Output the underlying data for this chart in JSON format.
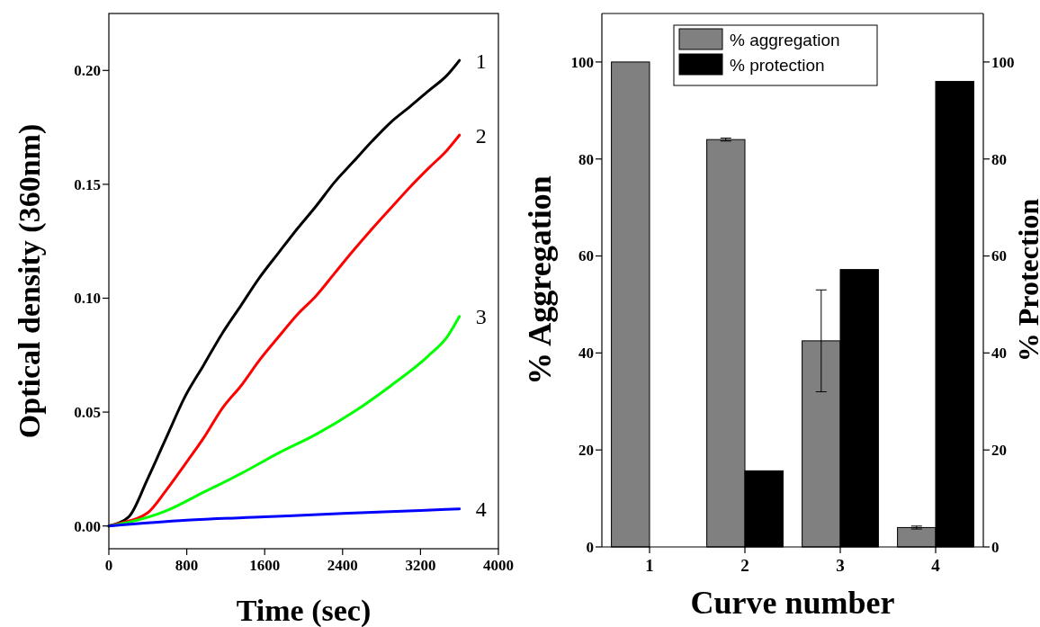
{
  "chart_data": [
    {
      "type": "line",
      "xlabel": "Time (sec)",
      "ylabel": "Optical density (360nm)",
      "xlim": [
        0,
        4000
      ],
      "xticks": [
        0,
        800,
        1600,
        2400,
        3200,
        4000
      ],
      "ylim": [
        -0.01,
        0.225
      ],
      "yticks": [
        {
          "value": 0,
          "label": "0.00"
        },
        0.05,
        {
          "value": 0.1,
          "label": "0.10"
        },
        0.15,
        {
          "value": 0.2,
          "label": "0.20"
        }
      ],
      "grid": false,
      "line_style": "solid",
      "marker": "none",
      "series": [
        {
          "name": "1",
          "color": "#000000",
          "x": [
            0,
            204,
            396,
            588,
            781,
            973,
            1165,
            1358,
            1550,
            1742,
            1935,
            2127,
            2319,
            2512,
            2704,
            2896,
            3088,
            3281,
            3473,
            3600
          ],
          "values": [
            0,
            0.004,
            0.0205,
            0.0386,
            0.0567,
            0.0706,
            0.0846,
            0.0969,
            0.1092,
            0.1199,
            0.1305,
            0.1404,
            0.151,
            0.16,
            0.169,
            0.1773,
            0.184,
            0.191,
            0.1979,
            0.2044
          ]
        },
        {
          "name": "2",
          "color": "#ff0000",
          "x": [
            0,
            100,
            396,
            588,
            781,
            973,
            1165,
            1358,
            1550,
            1742,
            1935,
            2127,
            2319,
            2512,
            2704,
            2896,
            3088,
            3281,
            3473,
            3600
          ],
          "values": [
            0,
            0.001,
            0.0057,
            0.0156,
            0.027,
            0.0386,
            0.0517,
            0.0616,
            0.073,
            0.083,
            0.0928,
            0.101,
            0.111,
            0.121,
            0.1305,
            0.1396,
            0.1486,
            0.157,
            0.165,
            0.1716
          ]
        },
        {
          "name": "3",
          "color": "#00ff00",
          "x": [
            0,
            204,
            588,
            973,
            1358,
            1742,
            2127,
            2512,
            2896,
            3281,
            3473,
            3600
          ],
          "values": [
            0,
            0.0016,
            0.0066,
            0.0148,
            0.023,
            0.032,
            0.0402,
            0.05,
            0.0616,
            0.0747,
            0.083,
            0.092
          ]
        },
        {
          "name": "4",
          "color": "#0000ff",
          "x": [
            0,
            800,
            1600,
            2400,
            3200,
            3600
          ],
          "values": [
            0,
            0.0025,
            0.004,
            0.0055,
            0.0068,
            0.0075
          ]
        }
      ]
    },
    {
      "type": "bar",
      "xlabel": "Curve number",
      "ylabel": "% Aggregation",
      "y2label": "% Protection",
      "categories": [
        "1",
        "2",
        "3",
        "4"
      ],
      "ylim": [
        0,
        110
      ],
      "yticks": [
        0,
        20,
        40,
        60,
        80,
        100
      ],
      "y2lim": [
        0,
        110
      ],
      "y2ticks": [
        0,
        20,
        40,
        60,
        80,
        100
      ],
      "grid": false,
      "legend": "top",
      "series": [
        {
          "name": "% aggregation",
          "color": "#808080",
          "values": [
            100,
            84,
            42.5,
            4
          ],
          "errors": [
            null,
            0.3,
            10.5,
            0.3
          ]
        },
        {
          "name": "% protection",
          "color": "#000000",
          "values": [
            0,
            15.7,
            57.2,
            96
          ]
        }
      ]
    }
  ]
}
